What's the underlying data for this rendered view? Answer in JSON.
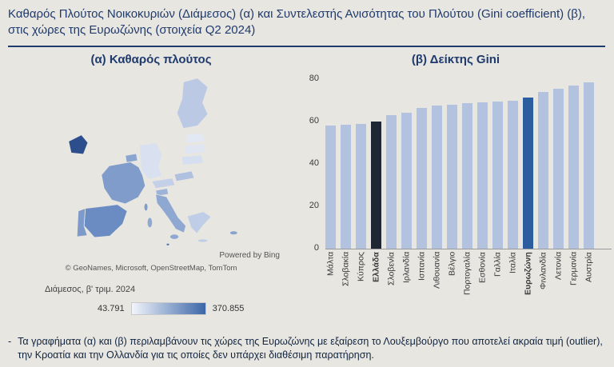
{
  "page": {
    "title": "Καθαρός Πλούτος Νοικοκυριών (Διάμεσος) (α) και Συντελεστής Ανισότητας του Πλούτου (Gini coefficient) (β), στις χώρες της Ευρωζώνης (στοιχεία Q2 2024)",
    "footnote_bullet": "-",
    "footnote": "Τα γραφήματα (α) και (β) περιλαμβάνουν τις χώρες της Ευρωζώνης με εξαίρεση το Λουξεμβούργο που αποτελεί ακραία τιμή (outlier), την Κροατία και την Ολλανδία για τις οποίες δεν υπάρχει διαθέσιμη παρατήρηση.",
    "accent_color": "#1f3a6d",
    "background_color": "#e8e6e1"
  },
  "map_panel": {
    "title": "(α) Καθαρός πλούτος",
    "powered_by": "Powered by Bing",
    "attribution": "© GeoNames, Microsoft, OpenStreetMap, TomTom",
    "legend_label": "Διάμεσος, β' τριμ. 2024",
    "legend_min": "43.791",
    "legend_max": "370.855",
    "gradient_start": "#f2f5fb",
    "gradient_end": "#3c66a8",
    "regions": [
      {
        "id": "finland",
        "color": "#bcc9e4"
      },
      {
        "id": "estonia",
        "color": "#e2e8f4"
      },
      {
        "id": "latvia",
        "color": "#dfe6f2"
      },
      {
        "id": "lithuania",
        "color": "#d6dff0"
      },
      {
        "id": "ireland",
        "color": "#2c4e8c"
      },
      {
        "id": "germany",
        "color": "#d9e1f0"
      },
      {
        "id": "belgium",
        "color": "#8aa5d0"
      },
      {
        "id": "france",
        "color": "#7f9cca"
      },
      {
        "id": "austria",
        "color": "#c3d0e8"
      },
      {
        "id": "slovakia",
        "color": "#b0c1e0"
      },
      {
        "id": "slovenia",
        "color": "#9db3d8"
      },
      {
        "id": "italy",
        "color": "#8ea8d2"
      },
      {
        "id": "spain",
        "color": "#6b8cc2"
      },
      {
        "id": "portugal",
        "color": "#7e9aca"
      },
      {
        "id": "greece",
        "color": "#c0cde6"
      },
      {
        "id": "cyprus",
        "color": "#88a3ce"
      },
      {
        "id": "malta",
        "color": "#5578b4"
      }
    ]
  },
  "chart_data": {
    "type": "bar",
    "title": "(β) Δείκτης Gini",
    "categories": [
      "Μάλτα",
      "Σλοβακία",
      "Κύπρος",
      "Ελλάδα",
      "Σλοβενία",
      "Ιρλανδία",
      "Ισπανία",
      "Λιθουανία",
      "Βέλγιο",
      "Πορτογαλία",
      "Εσθονία",
      "Γαλλία",
      "Ιταλία",
      "Ευρωζώνη",
      "Φινλανδία",
      "Λετονία",
      "Γερμανία",
      "Αυστρία"
    ],
    "values": [
      58,
      58.5,
      59,
      60,
      63,
      64,
      66.5,
      67.5,
      68,
      68.5,
      69,
      69.5,
      70,
      71.5,
      74,
      75.5,
      77,
      78.5
    ],
    "ylim": [
      0,
      80
    ],
    "yticks": [
      0,
      20,
      40,
      60,
      80
    ],
    "bar_color": "#b3c2de",
    "highlights": [
      {
        "category": "Ελλάδα",
        "color": "#1e2733"
      },
      {
        "category": "Ευρωζώνη",
        "color": "#2c5d9e"
      }
    ],
    "grid": false,
    "legend": "none"
  }
}
